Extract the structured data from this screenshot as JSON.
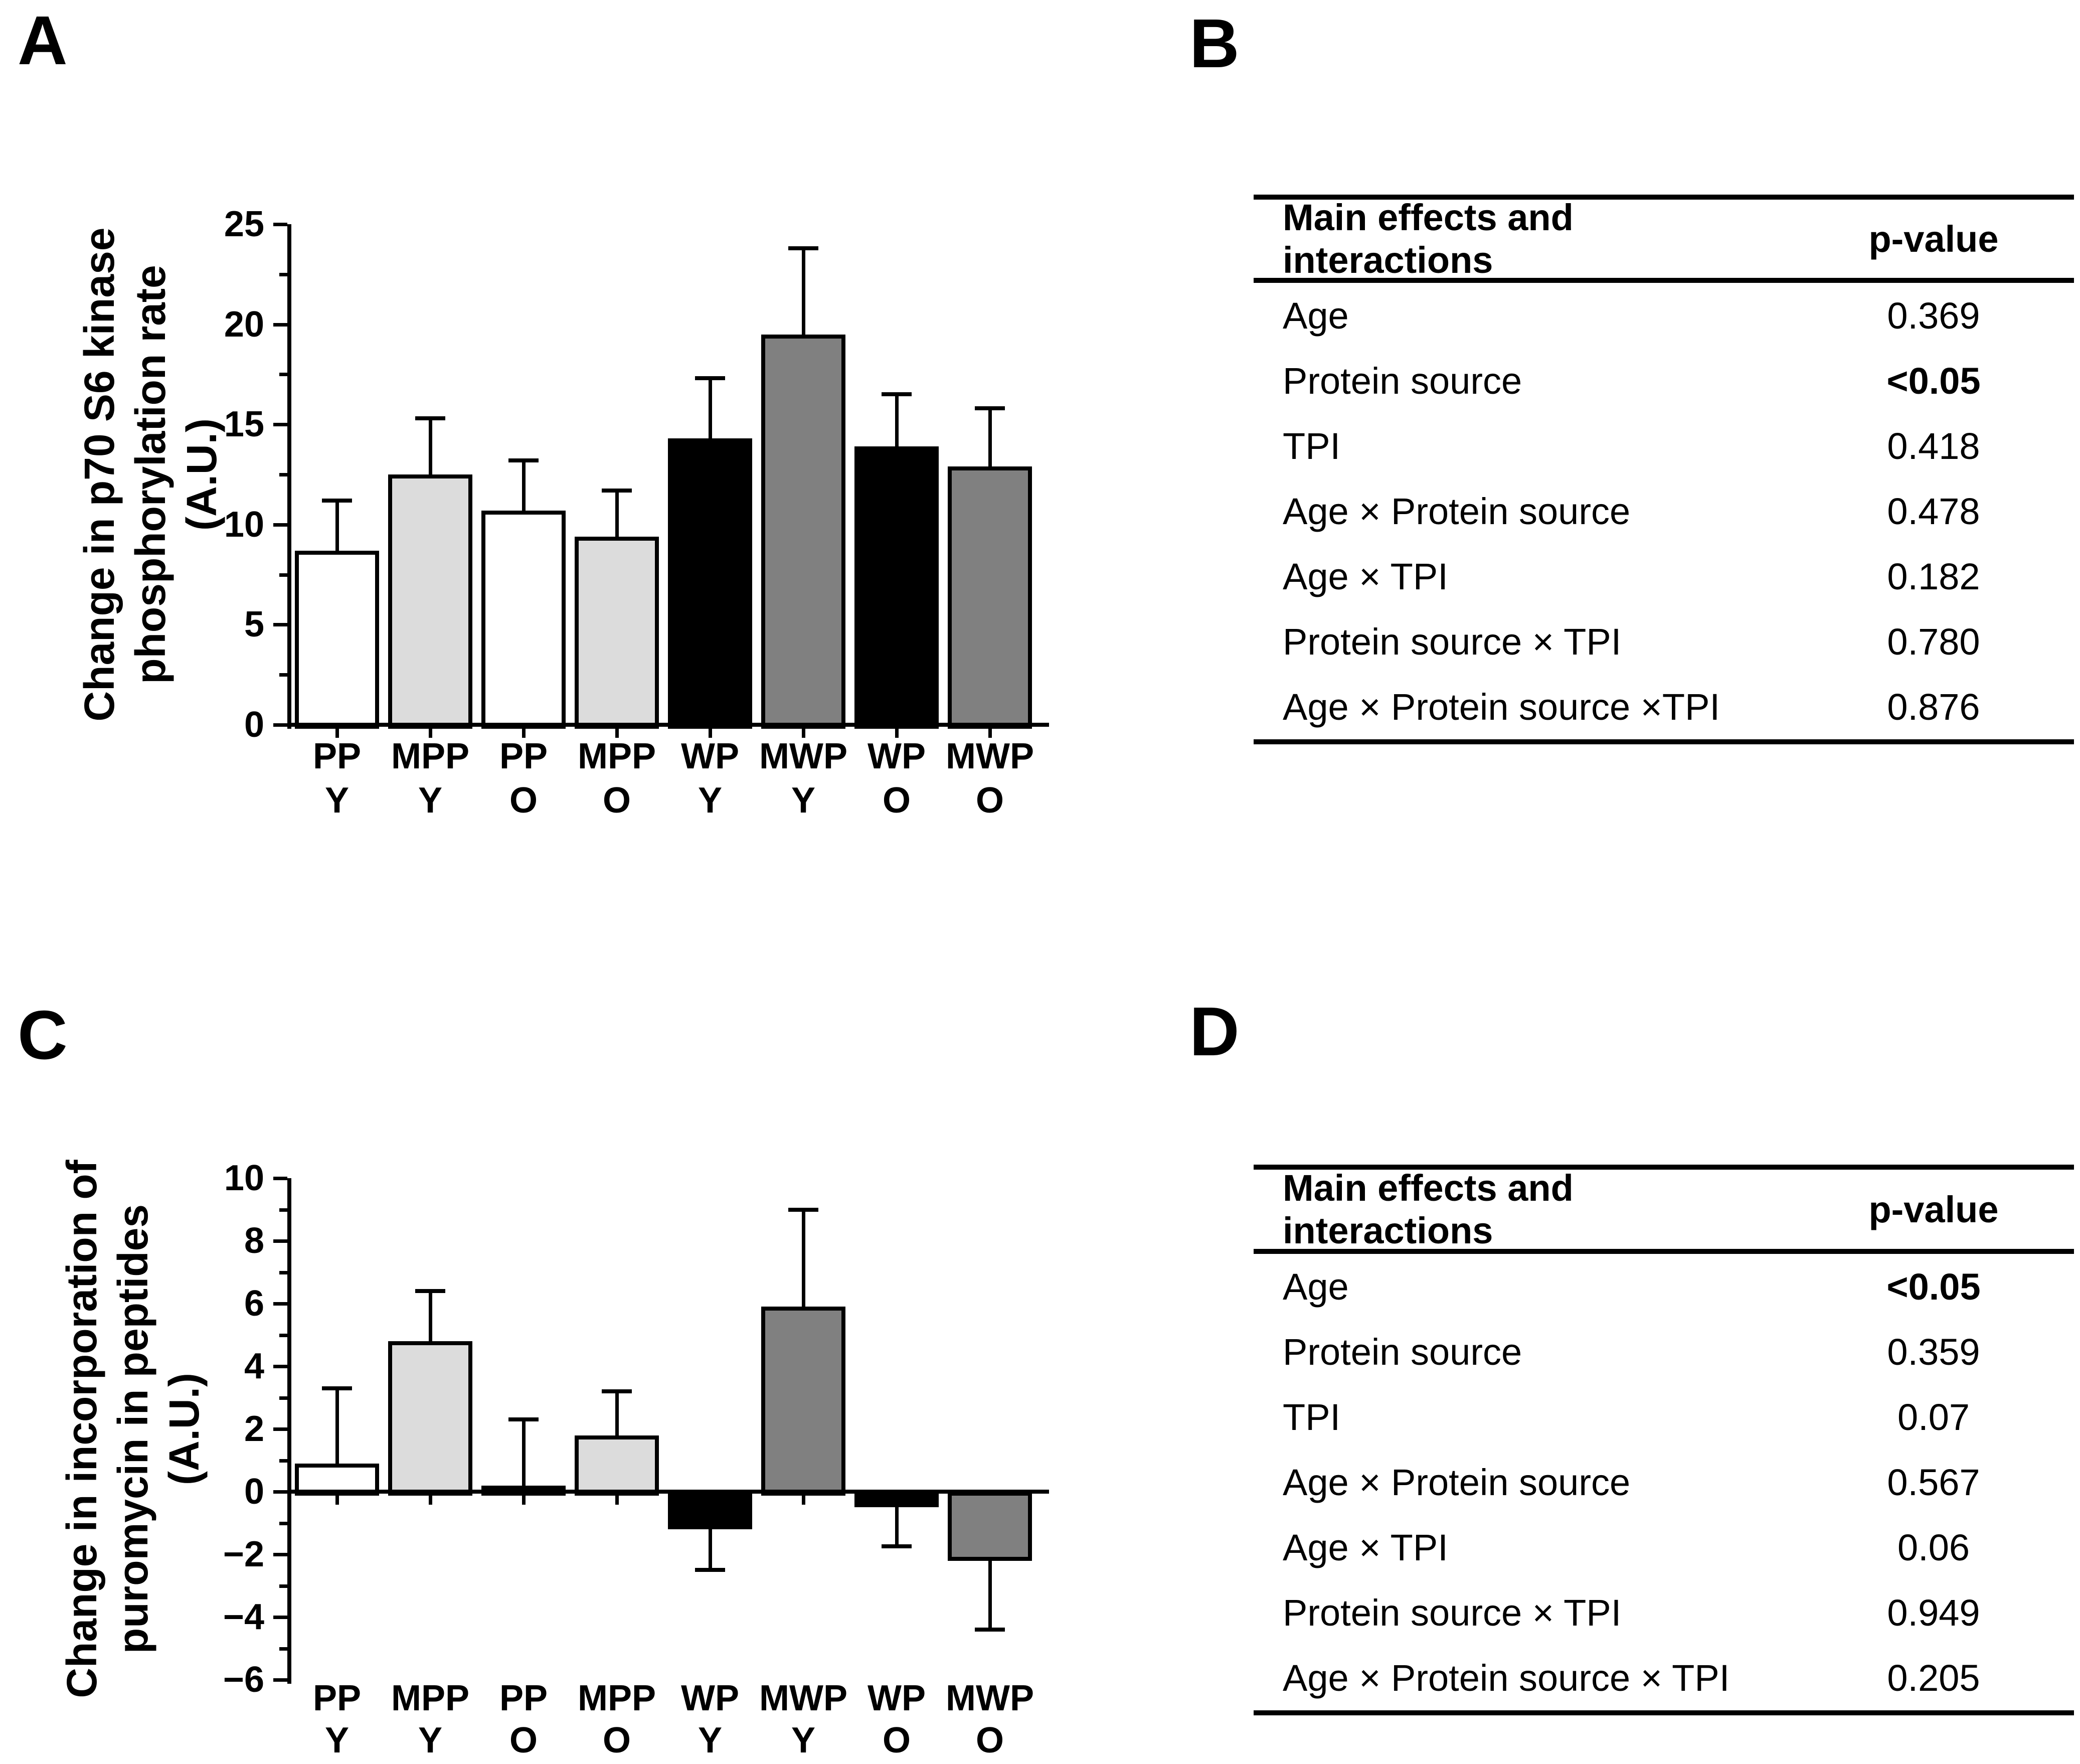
{
  "panels": {
    "a": {
      "label": "A"
    },
    "b": {
      "label": "B"
    },
    "c": {
      "label": "C"
    },
    "d": {
      "label": "D"
    }
  },
  "colors": {
    "bar_white": "#ffffff",
    "bar_light_gray": "#dcdcdc",
    "bar_black": "#000000",
    "bar_dark_gray": "#808080",
    "line": "#000000",
    "background": "#ffffff"
  },
  "chart_data": [
    {
      "id": "panel-a",
      "type": "bar",
      "title": "",
      "ylabel_lines": [
        "Change in p70 S6 kinase",
        "phosphorylation rate",
        "(A.U.)"
      ],
      "xlabel": "",
      "ylim": [
        0,
        25
      ],
      "ytick_major": [
        0,
        5,
        10,
        15,
        20,
        25
      ],
      "ytick_minor_step": 2.5,
      "grid": false,
      "legend": "none",
      "error_bars": "one-sided, extending away from zero",
      "categories": [
        [
          "PP",
          "Y"
        ],
        [
          "MPP",
          "Y"
        ],
        [
          "PP",
          "O"
        ],
        [
          "MPP",
          "O"
        ],
        [
          "WP",
          "Y"
        ],
        [
          "MWP",
          "Y"
        ],
        [
          "WP",
          "O"
        ],
        [
          "MWP",
          "O"
        ]
      ],
      "values": [
        8.7,
        12.5,
        10.7,
        9.4,
        14.3,
        19.5,
        13.9,
        12.9
      ],
      "errors": [
        2.5,
        2.8,
        2.5,
        2.3,
        3.0,
        4.3,
        2.6,
        2.9
      ],
      "bar_colors": [
        "#ffffff",
        "#dcdcdc",
        "#ffffff",
        "#dcdcdc",
        "#000000",
        "#808080",
        "#000000",
        "#808080"
      ]
    },
    {
      "id": "panel-c",
      "type": "bar",
      "title": "",
      "ylabel_lines": [
        "Change in incorporation of",
        "puromycin in peptides",
        "(A.U.)"
      ],
      "xlabel": "",
      "ylim": [
        -6,
        10
      ],
      "ytick_major": [
        -6,
        -4,
        -2,
        0,
        2,
        4,
        6,
        8,
        10
      ],
      "ytick_minor_step": 1,
      "grid": false,
      "legend": "none",
      "error_bars": "one-sided, extending away from zero",
      "categories": [
        [
          "PP",
          "Y"
        ],
        [
          "MPP",
          "Y"
        ],
        [
          "PP",
          "O"
        ],
        [
          "MPP",
          "O"
        ],
        [
          "WP",
          "Y"
        ],
        [
          "MWP",
          "Y"
        ],
        [
          "WP",
          "O"
        ],
        [
          "MWP",
          "O"
        ]
      ],
      "values": [
        0.9,
        4.8,
        0.2,
        1.8,
        -1.2,
        5.9,
        -0.5,
        -2.2
      ],
      "errors": [
        2.4,
        1.6,
        2.1,
        1.4,
        1.3,
        3.1,
        1.25,
        2.2
      ],
      "bar_colors": [
        "#ffffff",
        "#dcdcdc",
        "#ffffff",
        "#dcdcdc",
        "#000000",
        "#808080",
        "#000000",
        "#808080"
      ]
    }
  ],
  "tables": {
    "b": {
      "header": {
        "col1": "Main effects and interactions",
        "col2": "p-value"
      },
      "rows": [
        {
          "label": "Age",
          "p": "0.369",
          "bold": false
        },
        {
          "label": "Protein source",
          "p": "<0.05",
          "bold": true
        },
        {
          "label": "TPI",
          "p": "0.418",
          "bold": false
        },
        {
          "label": "Age × Protein source",
          "p": "0.478",
          "bold": false
        },
        {
          "label": "Age × TPI",
          "p": "0.182",
          "bold": false
        },
        {
          "label": "Protein source × TPI",
          "p": "0.780",
          "bold": false
        },
        {
          "label": "Age × Protein source ×TPI",
          "p": "0.876",
          "bold": false
        }
      ]
    },
    "d": {
      "header": {
        "col1": "Main effects and interactions",
        "col2": "p-value"
      },
      "rows": [
        {
          "label": "Age",
          "p": "<0.05",
          "bold": true
        },
        {
          "label": "Protein source",
          "p": "0.359",
          "bold": false
        },
        {
          "label": "TPI",
          "p": "0.07",
          "bold": false
        },
        {
          "label": "Age × Protein source",
          "p": "0.567",
          "bold": false
        },
        {
          "label": "Age × TPI",
          "p": "0.06",
          "bold": false
        },
        {
          "label": "Protein source × TPI",
          "p": "0.949",
          "bold": false
        },
        {
          "label": "Age × Protein source × TPI",
          "p": "0.205",
          "bold": false
        }
      ]
    }
  }
}
